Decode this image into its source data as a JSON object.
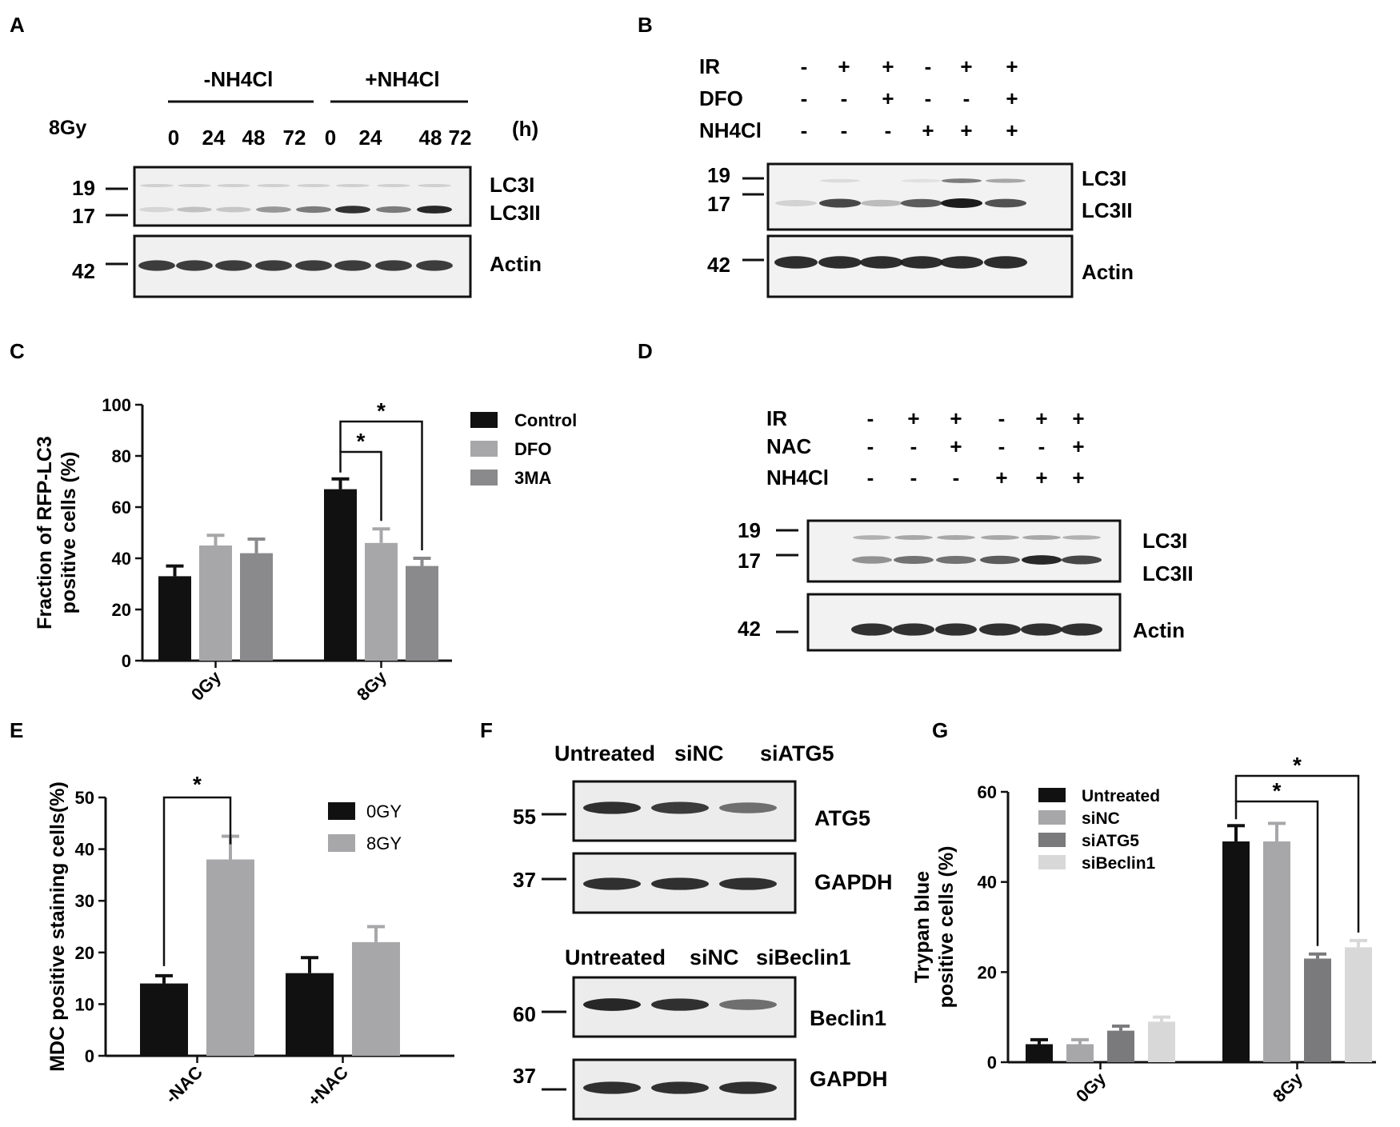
{
  "colors": {
    "black": "#111111",
    "light_gray": "#a7a7aa",
    "mid_gray": "#8a8a8c",
    "dark_gray": "#7a7a7c",
    "pale_gray": "#d8d8d8",
    "blot_bg": "#ececec",
    "band": "#1c1c1c"
  },
  "panel_letters": [
    "A",
    "B",
    "C",
    "D",
    "E",
    "F",
    "G"
  ],
  "panel_a": {
    "group_neg": "-NH4Cl",
    "group_pos": "+NH4Cl",
    "dose": "8Gy",
    "unit": "(h)",
    "times": [
      "0",
      "24",
      "48",
      "72",
      "0",
      "24",
      "48",
      "72"
    ],
    "markers": [
      "19",
      "17",
      "42"
    ],
    "bands": [
      "LC3I",
      "LC3II",
      "Actin"
    ],
    "lc3ii_intensity": [
      0.12,
      0.22,
      0.2,
      0.42,
      0.55,
      0.9,
      0.55,
      0.95
    ]
  },
  "panel_b": {
    "rows": [
      {
        "label": "IR",
        "signs": [
          "-",
          "+",
          "+",
          "-",
          "+",
          "+"
        ]
      },
      {
        "label": "DFO",
        "signs": [
          "-",
          "-",
          "+",
          "-",
          "-",
          "+"
        ]
      },
      {
        "label": "NH4Cl",
        "signs": [
          "-",
          "-",
          "-",
          "+",
          "+",
          "+"
        ]
      }
    ],
    "markers": [
      "19",
      "17",
      "42"
    ],
    "bands": [
      "LC3I",
      "LC3II",
      "Actin"
    ],
    "lc3i_intensity": [
      0,
      0.1,
      0,
      0.05,
      0.55,
      0.35
    ],
    "lc3ii_intensity": [
      0.15,
      0.8,
      0.25,
      0.7,
      1.0,
      0.75
    ]
  },
  "panel_d": {
    "rows": [
      {
        "label": "IR",
        "signs": [
          "-",
          "+",
          "+",
          "-",
          "+",
          "+"
        ]
      },
      {
        "label": "NAC",
        "signs": [
          "-",
          "-",
          "+",
          "-",
          "-",
          "+"
        ]
      },
      {
        "label": "NH4Cl",
        "signs": [
          "-",
          "-",
          "-",
          "+",
          "+",
          "+"
        ]
      }
    ],
    "markers": [
      "19",
      "17",
      "42"
    ],
    "bands": [
      "LC3I",
      "LC3II",
      "Actin"
    ],
    "lc3i_intensity": [
      0.3,
      0.35,
      0.35,
      0.35,
      0.35,
      0.3
    ],
    "lc3ii_intensity": [
      0.45,
      0.6,
      0.6,
      0.7,
      0.95,
      0.8
    ]
  },
  "panel_f": {
    "top_header": [
      "Untreated",
      "siNC",
      "siATG5"
    ],
    "top_markers": [
      "55",
      "37"
    ],
    "top_bands": [
      "ATG5",
      "GAPDH"
    ],
    "bottom_header": [
      "Untreated",
      "siNC",
      "siBeclin1"
    ],
    "bottom_markers": [
      "60",
      "37"
    ],
    "bottom_bands": [
      "Beclin1",
      "GAPDH"
    ]
  },
  "chart_data": [
    {
      "panel": "C",
      "type": "bar",
      "categories": [
        "0Gy",
        "8Gy"
      ],
      "series": [
        {
          "name": "Control",
          "values": [
            33,
            67
          ],
          "errors": [
            4,
            4
          ]
        },
        {
          "name": "DFO",
          "values": [
            45,
            46
          ],
          "errors": [
            4,
            5.5
          ]
        },
        {
          "name": "3MA",
          "values": [
            42,
            37
          ],
          "errors": [
            5.5,
            3
          ]
        }
      ],
      "ylabel": "Fraction of RFP-LC3\npositive cells (%)",
      "ylim": [
        0,
        100
      ],
      "yticks": [
        0,
        20,
        40,
        60,
        80,
        100
      ],
      "legend": "right",
      "significance": [
        "*",
        "*"
      ]
    },
    {
      "panel": "E",
      "type": "bar",
      "categories": [
        "-NAC",
        "+NAC"
      ],
      "series": [
        {
          "name": "0GY",
          "values": [
            14,
            16
          ],
          "errors": [
            1.5,
            3
          ]
        },
        {
          "name": "8GY",
          "values": [
            38,
            22
          ],
          "errors": [
            4.5,
            3
          ]
        }
      ],
      "ylabel": "MDC positive staining cells(%)",
      "ylim": [
        0,
        50
      ],
      "yticks": [
        0,
        10,
        20,
        30,
        40,
        50
      ],
      "legend": "top-right",
      "significance": [
        "*"
      ]
    },
    {
      "panel": "G",
      "type": "bar",
      "categories": [
        "0Gy",
        "8Gy"
      ],
      "series": [
        {
          "name": "Untreated",
          "values": [
            4,
            49
          ],
          "errors": [
            1,
            3.5
          ]
        },
        {
          "name": "siNC",
          "values": [
            4,
            49
          ],
          "errors": [
            1,
            4
          ]
        },
        {
          "name": "siATG5",
          "values": [
            7,
            23
          ],
          "errors": [
            1,
            1
          ]
        },
        {
          "name": "siBeclin1",
          "values": [
            9,
            25.5
          ],
          "errors": [
            1,
            1.5
          ]
        }
      ],
      "ylabel": "Trypan blue\npositive cells (%)",
      "ylim": [
        0,
        60
      ],
      "yticks": [
        0,
        20,
        40,
        60
      ],
      "legend": "top-left",
      "significance": [
        "*",
        "*"
      ]
    }
  ]
}
